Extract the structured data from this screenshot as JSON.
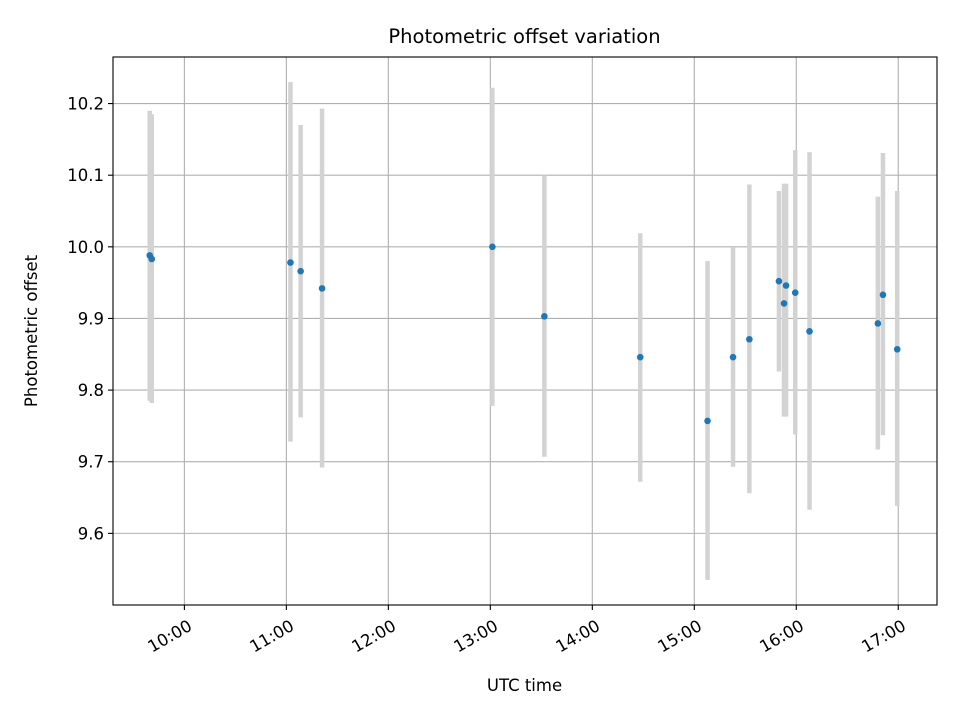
{
  "chart_data": {
    "type": "scatter",
    "title": "Photometric offset variation",
    "xlabel": "UTC time",
    "ylabel": "Photometric offset",
    "x_unit": "hours UTC",
    "xlim": [
      9.3,
      17.38
    ],
    "ylim": [
      9.5,
      10.265
    ],
    "x_ticks": [
      {
        "value": 10,
        "label": "10:00"
      },
      {
        "value": 11,
        "label": "11:00"
      },
      {
        "value": 12,
        "label": "12:00"
      },
      {
        "value": 13,
        "label": "13:00"
      },
      {
        "value": 14,
        "label": "14:00"
      },
      {
        "value": 15,
        "label": "15:00"
      },
      {
        "value": 16,
        "label": "16:00"
      },
      {
        "value": 17,
        "label": "17:00"
      }
    ],
    "y_ticks": [
      {
        "value": 9.6,
        "label": "9.6"
      },
      {
        "value": 9.7,
        "label": "9.7"
      },
      {
        "value": 9.8,
        "label": "9.8"
      },
      {
        "value": 9.9,
        "label": "9.9"
      },
      {
        "value": 10.0,
        "label": "10.0"
      },
      {
        "value": 10.1,
        "label": "10.1"
      },
      {
        "value": 10.2,
        "label": "10.2"
      }
    ],
    "grid": true,
    "marker_color": "#1f77b4",
    "errorbar_color": "#d3d3d3",
    "series": [
      {
        "points": [
          {
            "x": 9.66,
            "y": 9.988,
            "low": 9.785,
            "high": 10.19
          },
          {
            "x": 9.68,
            "y": 9.983,
            "low": 9.782,
            "high": 10.185
          },
          {
            "x": 11.04,
            "y": 9.978,
            "low": 9.728,
            "high": 10.23
          },
          {
            "x": 11.14,
            "y": 9.966,
            "low": 9.762,
            "high": 10.17
          },
          {
            "x": 11.35,
            "y": 9.942,
            "low": 9.692,
            "high": 10.193
          },
          {
            "x": 13.02,
            "y": 10.0,
            "low": 9.778,
            "high": 10.222
          },
          {
            "x": 13.53,
            "y": 9.903,
            "low": 9.707,
            "high": 10.1
          },
          {
            "x": 14.47,
            "y": 9.846,
            "low": 9.672,
            "high": 10.019
          },
          {
            "x": 15.13,
            "y": 9.757,
            "low": 9.535,
            "high": 9.98
          },
          {
            "x": 15.38,
            "y": 9.846,
            "low": 9.693,
            "high": 10.0
          },
          {
            "x": 15.54,
            "y": 9.871,
            "low": 9.656,
            "high": 10.087
          },
          {
            "x": 15.83,
            "y": 9.952,
            "low": 9.826,
            "high": 10.078
          },
          {
            "x": 15.88,
            "y": 9.921,
            "low": 9.763,
            "high": 10.088
          },
          {
            "x": 15.9,
            "y": 9.946,
            "low": 9.763,
            "high": 10.088
          },
          {
            "x": 15.99,
            "y": 9.936,
            "low": 9.738,
            "high": 10.135
          },
          {
            "x": 16.13,
            "y": 9.882,
            "low": 9.633,
            "high": 10.132
          },
          {
            "x": 16.8,
            "y": 9.893,
            "low": 9.717,
            "high": 10.07
          },
          {
            "x": 16.85,
            "y": 9.933,
            "low": 9.737,
            "high": 10.131
          },
          {
            "x": 16.99,
            "y": 9.857,
            "low": 9.638,
            "high": 10.078
          }
        ]
      }
    ]
  }
}
